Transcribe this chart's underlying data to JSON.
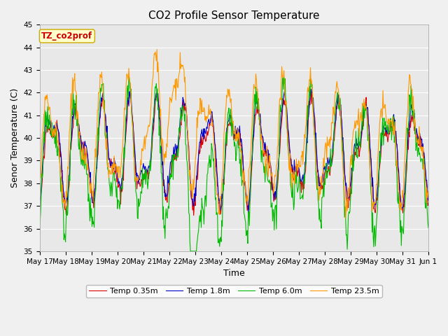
{
  "title": "CO2 Profile Sensor Temperature",
  "xlabel": "Time",
  "ylabel": "Senor Temperature (C)",
  "ylim": [
    35.0,
    45.0
  ],
  "yticks": [
    35.0,
    36.0,
    37.0,
    38.0,
    39.0,
    40.0,
    41.0,
    42.0,
    43.0,
    44.0,
    45.0
  ],
  "figure_bg_color": "#f0f0f0",
  "plot_bg_color": "#e8e8e8",
  "legend_label": "TZ_co2prof",
  "legend_box_facecolor": "#ffffcc",
  "legend_box_edgecolor": "#ccaa00",
  "legend_text_color": "#cc0000",
  "series": [
    {
      "label": "Temp 0.35m",
      "color": "#dd0000"
    },
    {
      "label": "Temp 1.8m",
      "color": "#0000cc"
    },
    {
      "label": "Temp 6.0m",
      "color": "#00bb00"
    },
    {
      "label": "Temp 23.5m",
      "color": "#ff9900"
    }
  ],
  "xtick_labels": [
    "May 17",
    "May 18",
    "May 19",
    "May 20",
    "May 21",
    "May 22",
    "May 23",
    "May 24",
    "May 25",
    "May 26",
    "May 27",
    "May 28",
    "May 29",
    "May 30",
    "May 31",
    "Jun 1"
  ],
  "title_fontsize": 11,
  "axis_label_fontsize": 9,
  "tick_fontsize": 7.5,
  "legend_fontsize": 8,
  "annotation_fontsize": 8.5
}
